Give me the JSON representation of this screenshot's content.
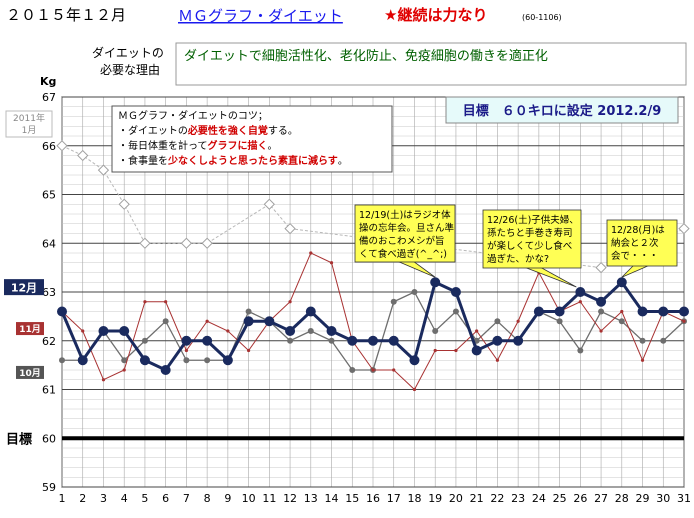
{
  "header": {
    "title": "２０１５年１２月",
    "subtitle": "ＭＧグラフ・ダイエット",
    "slogan": "★継続は力なり",
    "code": "(60-1106)"
  },
  "reason": {
    "label_line1": "ダイエットの",
    "label_line2": "必要な理由",
    "text": "ダイエットで細胞活性化、老化防止、免疫細胞の働きを適正化"
  },
  "tips": {
    "title": "ＭＧグラフ・ダイエットのコツ；",
    "lines": [
      [
        "・ダイエットの",
        "必要性を強く自覚",
        "する。"
      ],
      [
        "・毎日体重を計って",
        "グラフに描く",
        "。"
      ],
      [
        "・食事量を",
        "少なくしようと思ったら素直に減らす",
        "。"
      ]
    ]
  },
  "goal_banner": "目標　６０キロに設定 2012.2/9",
  "ref_label": {
    "line1": "2011年",
    "line2": "1月"
  },
  "chart_data": {
    "type": "line",
    "ylabel": "Kg",
    "ylim": [
      59,
      67
    ],
    "yticks": [
      59,
      60,
      61,
      62,
      63,
      64,
      65,
      66,
      67
    ],
    "x": [
      1,
      2,
      3,
      4,
      5,
      6,
      7,
      8,
      9,
      10,
      11,
      12,
      13,
      14,
      15,
      16,
      17,
      18,
      19,
      20,
      21,
      22,
      23,
      24,
      25,
      26,
      27,
      28,
      29,
      30,
      31
    ],
    "target": 60,
    "target_label": "目標",
    "series": [
      {
        "name": "12月",
        "color": "#1a2a5e",
        "values": [
          62.6,
          61.6,
          62.2,
          62.2,
          61.6,
          61.4,
          62.0,
          62.0,
          61.6,
          62.4,
          62.4,
          62.2,
          62.6,
          62.2,
          62.0,
          62.0,
          62.0,
          61.6,
          63.2,
          63.0,
          61.8,
          62.0,
          62.0,
          62.6,
          62.6,
          63.0,
          62.8,
          63.2,
          62.6,
          62.6,
          62.6
        ]
      },
      {
        "name": "11月",
        "color": "#a83232",
        "values": [
          62.6,
          62.2,
          61.2,
          61.4,
          62.8,
          62.8,
          61.8,
          62.4,
          62.2,
          61.8,
          62.4,
          62.8,
          63.8,
          63.6,
          62.0,
          61.4,
          61.4,
          61.0,
          61.8,
          61.8,
          62.2,
          61.6,
          62.4,
          63.4,
          62.6,
          62.8,
          62.2,
          62.6,
          61.6,
          62.6,
          62.4
        ]
      },
      {
        "name": "10月",
        "color": "#6e6e6e",
        "values": [
          61.6,
          61.6,
          62.2,
          61.6,
          62.0,
          62.4,
          61.6,
          61.6,
          61.6,
          62.6,
          62.4,
          62.0,
          62.2,
          62.0,
          61.4,
          61.4,
          62.8,
          63.0,
          62.2,
          62.6,
          62.0,
          62.4,
          62.0,
          62.6,
          62.4,
          61.8,
          62.6,
          62.4,
          62.0,
          62.0,
          62.4
        ]
      },
      {
        "name": "",
        "color": "#b8b8b8",
        "values": [
          66.0,
          65.8,
          65.5,
          64.8,
          64.0,
          null,
          64.0,
          64.0,
          null,
          null,
          64.8,
          64.3,
          null,
          null,
          null,
          null,
          null,
          null,
          null,
          null,
          null,
          null,
          null,
          null,
          null,
          null,
          63.5,
          null,
          null,
          null,
          64.3
        ]
      }
    ],
    "annotations": [
      {
        "day": 19,
        "text": [
          "12/19(土)はラジオ体",
          "操の忘年会。旦さん準",
          "備のおこわメシが旨",
          "くて食べ過ぎ(^_^;)"
        ]
      },
      {
        "day": 25,
        "text": [
          "12/26(土)子供夫婦、",
          "孫たちと手巻き寿司",
          "が楽しくて少し食べ",
          "過ぎた、かな?"
        ]
      },
      {
        "day": 28,
        "text": [
          "12/28(月)は",
          "納会と２次",
          "会で・・・"
        ]
      }
    ]
  }
}
